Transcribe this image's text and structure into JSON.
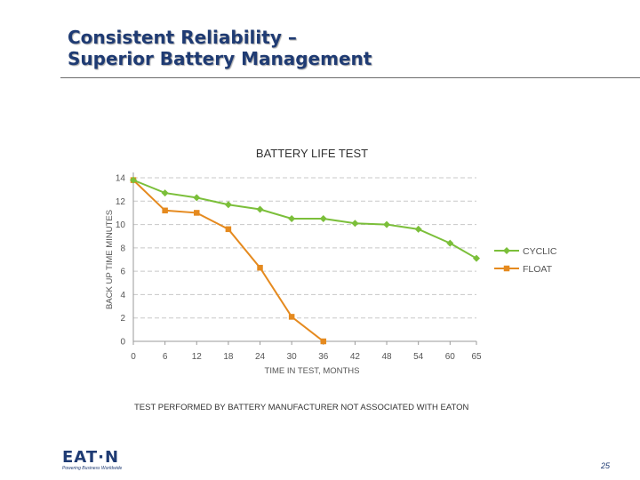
{
  "slide": {
    "title_line1": "Consistent Reliability –",
    "title_line2": "Superior Battery Management",
    "page_number": "25",
    "logo_text": "EAT·N",
    "logo_tagline": "Powering Business Worldwide"
  },
  "colors": {
    "title": "#1f3b73",
    "cyclic": "#7bbf3a",
    "float": "#e58a1f",
    "grid": "#c8c8c8"
  },
  "chart_data": {
    "type": "line",
    "title": "BATTERY LIFE TEST",
    "xlabel": "TIME IN TEST, MONTHS",
    "ylabel": "BACK UP TIME MINUTES",
    "x": [
      0,
      6,
      12,
      18,
      24,
      30,
      36,
      42,
      48,
      54,
      60,
      65
    ],
    "x_tick_labels": [
      "0",
      "6",
      "12",
      "18",
      "24",
      "30",
      "36",
      "42",
      "48",
      "54",
      "60",
      "65"
    ],
    "y_ticks": [
      0,
      2,
      4,
      6,
      8,
      10,
      12,
      14
    ],
    "y_tick_labels": [
      "0",
      "2",
      "4",
      "6",
      "8",
      "10",
      "12",
      "14"
    ],
    "ylim": [
      0,
      14
    ],
    "grid": "horizontal dashed",
    "legend_position": "right",
    "series": [
      {
        "name": "CYCLIC",
        "x": [
          0,
          6,
          12,
          18,
          24,
          30,
          36,
          42,
          48,
          54,
          60,
          65
        ],
        "values": [
          13.8,
          12.7,
          12.3,
          11.7,
          11.3,
          10.5,
          10.5,
          10.1,
          10.0,
          9.6,
          8.4,
          7.1
        ]
      },
      {
        "name": "FLOAT",
        "x": [
          0,
          6,
          12,
          18,
          24,
          30,
          36
        ],
        "values": [
          13.8,
          11.2,
          11.0,
          9.6,
          6.3,
          2.1,
          0.0
        ]
      }
    ],
    "footnote": "TEST PERFORMED BY BATTERY MANUFACTURER NOT ASSOCIATED WITH EATON"
  }
}
